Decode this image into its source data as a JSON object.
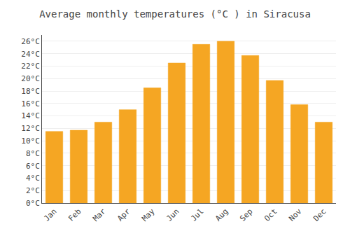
{
  "chart_data": {
    "type": "bar",
    "title": "Average monthly temperatures (°C ) in Siracusa",
    "categories": [
      "Jan",
      "Feb",
      "Mar",
      "Apr",
      "May",
      "Jun",
      "Jul",
      "Aug",
      "Sep",
      "Oct",
      "Nov",
      "Dec"
    ],
    "values": [
      11.5,
      11.7,
      13.0,
      15.0,
      18.5,
      22.5,
      25.5,
      26.0,
      23.7,
      19.7,
      15.8,
      13.0
    ],
    "color": "#F5A623",
    "ylim": [
      0,
      27
    ],
    "yticks": [
      {
        "value": 0,
        "label": "0°C"
      },
      {
        "value": 2,
        "label": "2°C"
      },
      {
        "value": 4,
        "label": "4°C"
      },
      {
        "value": 6,
        "label": "6°C"
      },
      {
        "value": 8,
        "label": "8°C"
      },
      {
        "value": 10,
        "label": "10°C"
      },
      {
        "value": 12,
        "label": "12°C"
      },
      {
        "value": 14,
        "label": "14°C"
      },
      {
        "value": 16,
        "label": "16°C"
      },
      {
        "value": 18,
        "label": "18°C"
      },
      {
        "value": 20,
        "label": "20°C"
      },
      {
        "value": 22,
        "label": "22°C"
      },
      {
        "value": 24,
        "label": "24°C"
      },
      {
        "value": 26,
        "label": "26°C"
      }
    ],
    "grid": true
  }
}
